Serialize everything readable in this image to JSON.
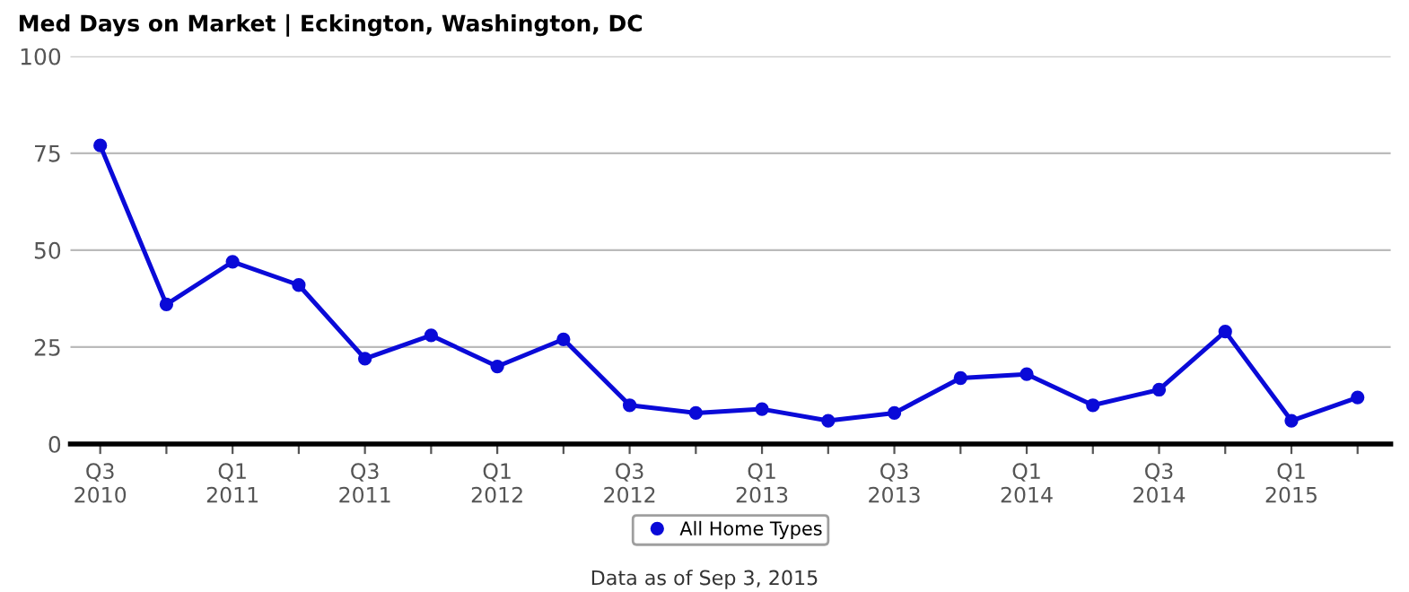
{
  "chart_data": {
    "type": "line",
    "title": "Med Days on Market | Eckington, Washington, DC",
    "categories": [
      "Q3\n2010",
      null,
      "Q1\n2011",
      null,
      "Q3\n2011",
      null,
      "Q1\n2012",
      null,
      "Q3\n2012",
      null,
      "Q1\n2013",
      null,
      "Q3\n2013",
      null,
      "Q1\n2014",
      null,
      "Q3\n2014",
      null,
      "Q1\n2015",
      null
    ],
    "series": [
      {
        "name": "All Home Types",
        "color": "#0a0ad8",
        "values": [
          77,
          36,
          47,
          41,
          22,
          28,
          20,
          27,
          10,
          8,
          9,
          6,
          8,
          17,
          18,
          10,
          14,
          29,
          6,
          12
        ]
      }
    ],
    "ylim": [
      0,
      100
    ],
    "yticks": [
      0,
      25,
      50,
      75,
      100
    ],
    "grid": "y",
    "legend": "bottom",
    "marker": "circle",
    "line_style": "solid",
    "annotations": [
      "Data as of Sep 3, 2015"
    ]
  }
}
